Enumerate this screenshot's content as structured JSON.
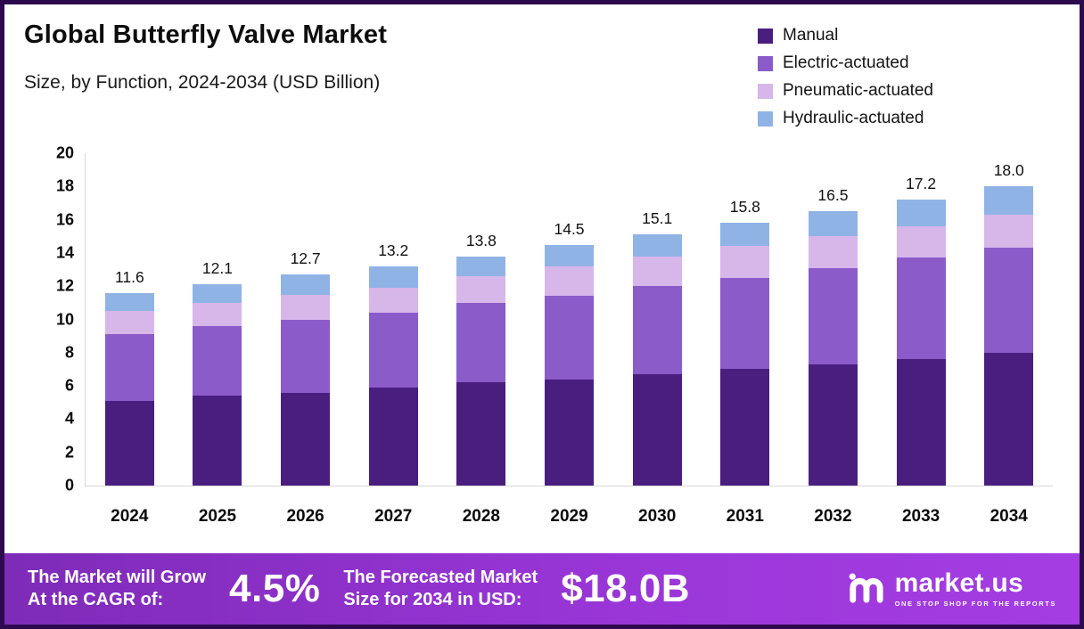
{
  "header": {
    "title": "Global Butterfly Valve Market",
    "subtitle": "Size, by Function, 2024-2034 (USD Billion)"
  },
  "legend": [
    {
      "label": "Manual",
      "color": "#4a1e7f"
    },
    {
      "label": "Electric-actuated",
      "color": "#8b5bc9"
    },
    {
      "label": "Pneumatic-actuated",
      "color": "#d7b6ea"
    },
    {
      "label": "Hydraulic-actuated",
      "color": "#90b3e6"
    }
  ],
  "chart_data": {
    "type": "bar",
    "stacked": true,
    "title": "Global Butterfly Valve Market Size, by Function, 2024-2034 (USD Billion)",
    "xlabel": "",
    "ylabel": "USD Billion",
    "ylim": [
      0,
      20
    ],
    "yticks": [
      0,
      2,
      4,
      6,
      8,
      10,
      12,
      14,
      16,
      18,
      20
    ],
    "grid": false,
    "legend_position": "top-right",
    "categories": [
      "2024",
      "2025",
      "2026",
      "2027",
      "2028",
      "2029",
      "2030",
      "2031",
      "2032",
      "2033",
      "2034"
    ],
    "series": [
      {
        "name": "Manual",
        "color": "#4a1e7f",
        "values": [
          5.1,
          5.4,
          5.6,
          5.9,
          6.2,
          6.4,
          6.7,
          7.0,
          7.3,
          7.6,
          8.0
        ]
      },
      {
        "name": "Electric-actuated",
        "color": "#8b5bc9",
        "values": [
          4.0,
          4.2,
          4.4,
          4.5,
          4.8,
          5.0,
          5.3,
          5.5,
          5.8,
          6.1,
          6.3
        ]
      },
      {
        "name": "Pneumatic-actuated",
        "color": "#d7b6ea",
        "values": [
          1.4,
          1.4,
          1.5,
          1.5,
          1.6,
          1.8,
          1.8,
          1.9,
          1.9,
          1.9,
          2.0
        ]
      },
      {
        "name": "Hydraulic-actuated",
        "color": "#90b3e6",
        "values": [
          1.1,
          1.1,
          1.2,
          1.3,
          1.2,
          1.3,
          1.3,
          1.4,
          1.5,
          1.6,
          1.7
        ]
      }
    ],
    "totals": [
      11.6,
      12.1,
      12.7,
      13.2,
      13.8,
      14.5,
      15.1,
      15.8,
      16.5,
      17.2,
      18.0
    ]
  },
  "footer": {
    "cagr_line1": "The Market will Grow",
    "cagr_line2": "At the CAGR of:",
    "cagr_value": "4.5%",
    "forecast_line1": "The Forecasted Market",
    "forecast_line2": "Size for 2034 in USD:",
    "forecast_value": "$18.0B",
    "brand": "market.us",
    "brand_tagline": "ONE STOP SHOP FOR THE REPORTS"
  }
}
